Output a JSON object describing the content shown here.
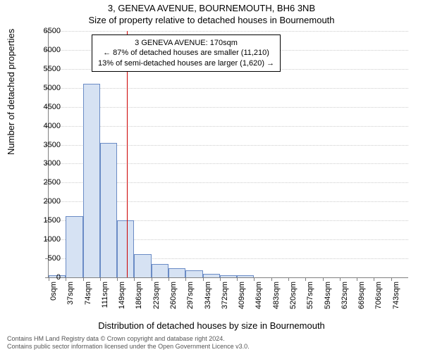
{
  "title_line1": "3, GENEVA AVENUE, BOURNEMOUTH, BH6 3NB",
  "title_line2": "Size of property relative to detached houses in Bournemouth",
  "ylabel": "Number of detached properties",
  "xlabel": "Distribution of detached houses by size in Bournemouth",
  "chart": {
    "type": "histogram",
    "background_color": "#ffffff",
    "grid_color": "#cccccc",
    "axis_color": "#808080",
    "bar_fill": "#d6e2f3",
    "bar_stroke": "#6a8bc5",
    "refline_color": "#cc0000",
    "ylim": [
      0,
      6500
    ],
    "ytick_step": 500,
    "yticks": [
      0,
      500,
      1000,
      1500,
      2000,
      2500,
      3000,
      3500,
      4000,
      4500,
      5000,
      5500,
      6000,
      6500
    ],
    "x_categories": [
      "0sqm",
      "37sqm",
      "74sqm",
      "111sqm",
      "149sqm",
      "186sqm",
      "223sqm",
      "260sqm",
      "297sqm",
      "334sqm",
      "372sqm",
      "409sqm",
      "446sqm",
      "483sqm",
      "520sqm",
      "557sqm",
      "594sqm",
      "632sqm",
      "669sqm",
      "706sqm",
      "743sqm"
    ],
    "values": [
      50,
      1620,
      5100,
      3550,
      1500,
      620,
      350,
      250,
      180,
      100,
      60,
      60,
      0,
      0,
      0,
      0,
      0,
      0,
      0,
      0,
      0
    ],
    "reference_value_sqm": 170,
    "bar_width_ratio": 1.0,
    "tick_fontsize": 11,
    "label_fontsize": 13,
    "title_fontsize": 13
  },
  "annotation": {
    "line1": "3 GENEVA AVENUE: 170sqm",
    "line2": "← 87% of detached houses are smaller (11,210)",
    "line3": "13% of semi-detached houses are larger (1,620) →",
    "border_color": "#000000",
    "background_color": "#ffffff",
    "fontsize": 11
  },
  "footer": {
    "line1": "Contains HM Land Registry data © Crown copyright and database right 2024.",
    "line2": "Contains public sector information licensed under the Open Government Licence v3.0.",
    "fontsize": 9,
    "color": "#555555"
  }
}
